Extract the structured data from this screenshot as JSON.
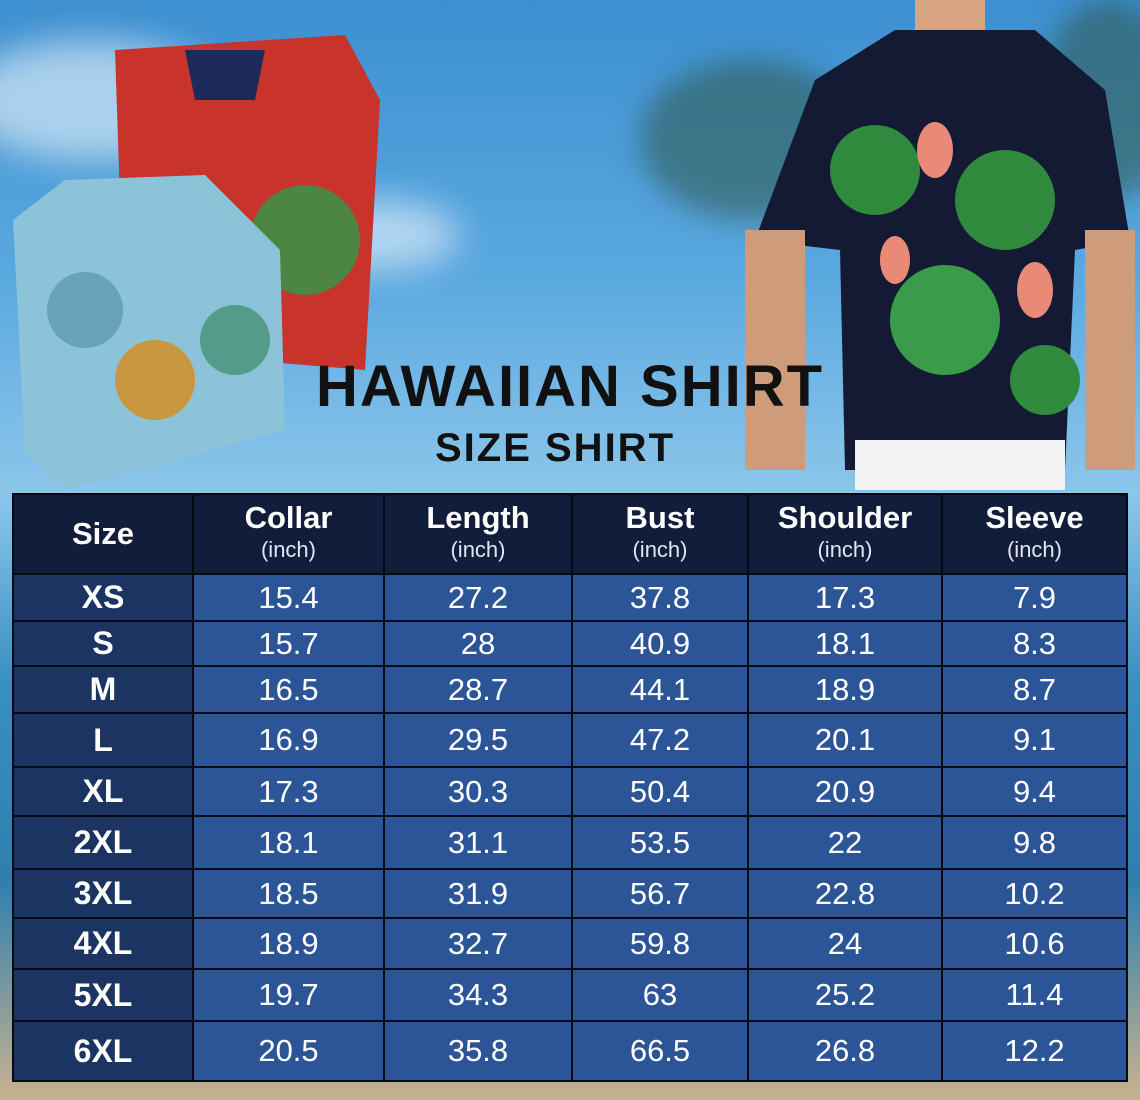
{
  "title": "HAWAIIAN SHIRT",
  "subtitle": "SIZE SHIRT",
  "colors": {
    "header": "#111d3a",
    "size_column": "#1b3462",
    "cell": "#2b5597",
    "title": "#111111"
  },
  "table": {
    "columns": [
      {
        "label": "Size",
        "unit": ""
      },
      {
        "label": "Collar",
        "unit": "(inch)"
      },
      {
        "label": "Length",
        "unit": "(inch)"
      },
      {
        "label": "Bust",
        "unit": "(inch)"
      },
      {
        "label": "Shoulder",
        "unit": "(inch)"
      },
      {
        "label": "Sleeve",
        "unit": "(inch)"
      }
    ],
    "rows": [
      [
        "XS",
        "15.4",
        "27.2",
        "37.8",
        "17.3",
        "7.9"
      ],
      [
        "S",
        "15.7",
        "28",
        "40.9",
        "18.1",
        "8.3"
      ],
      [
        "M",
        "16.5",
        "28.7",
        "44.1",
        "18.9",
        "8.7"
      ],
      [
        "L",
        "16.9",
        "29.5",
        "47.2",
        "20.1",
        "9.1"
      ],
      [
        "XL",
        "17.3",
        "30.3",
        "50.4",
        "20.9",
        "9.4"
      ],
      [
        "2XL",
        "18.1",
        "31.1",
        "53.5",
        "22",
        "9.8"
      ],
      [
        "3XL",
        "18.5",
        "31.9",
        "56.7",
        "22.8",
        "10.2"
      ],
      [
        "4XL",
        "18.9",
        "32.7",
        "59.8",
        "24",
        "10.6"
      ],
      [
        "5XL",
        "19.7",
        "34.3",
        "63",
        "25.2",
        "11.4"
      ],
      [
        "6XL",
        "20.5",
        "35.8",
        "66.5",
        "26.8",
        "12.2"
      ]
    ]
  }
}
